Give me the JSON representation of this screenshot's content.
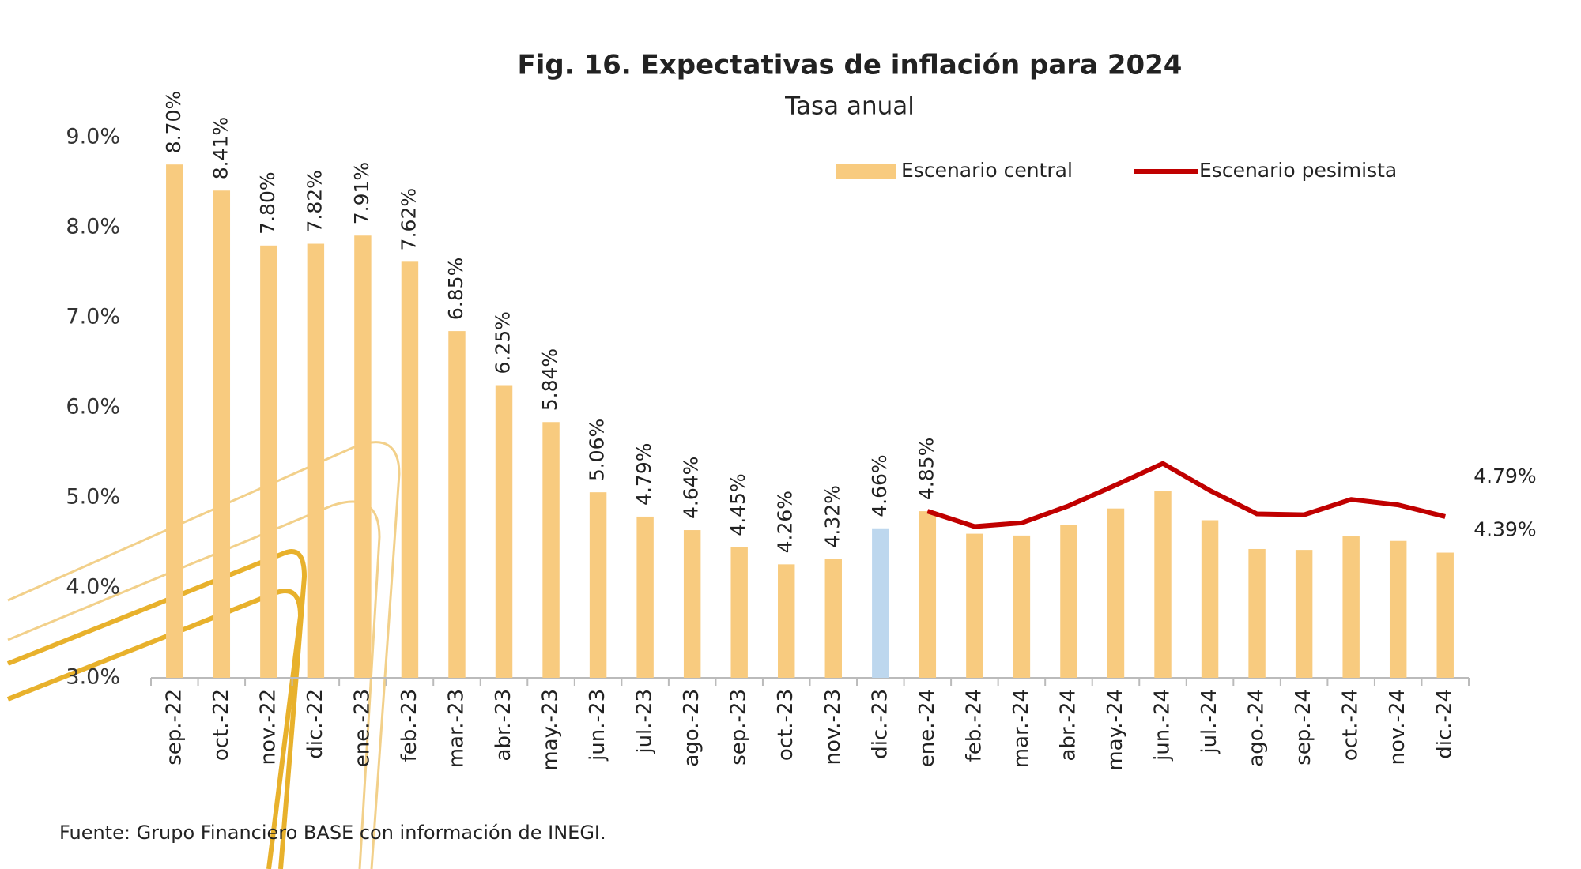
{
  "chart_data": {
    "type": "bar",
    "title": "Fig. 16. Expectativas de inflación para 2024",
    "subtitle": "Tasa anual",
    "source": "Fuente: Grupo Financiero BASE con información de INEGI.",
    "categories": [
      "sep.-22",
      "oct.-22",
      "nov.-22",
      "dic.-22",
      "ene.-23",
      "feb.-23",
      "mar.-23",
      "abr.-23",
      "may.-23",
      "jun.-23",
      "jul.-23",
      "ago.-23",
      "sep.-23",
      "oct.-23",
      "nov.-23",
      "dic.-23",
      "ene.-24",
      "feb.-24",
      "mar.-24",
      "abr.-24",
      "may.-24",
      "jun.-24",
      "jul.-24",
      "ago.-24",
      "sep.-24",
      "oct.-24",
      "nov.-24",
      "dic.-24"
    ],
    "series": [
      {
        "name": "Escenario central",
        "type": "bar",
        "color": "#f8cb7f",
        "values": [
          8.7,
          8.41,
          7.8,
          7.82,
          7.91,
          7.62,
          6.85,
          6.25,
          5.84,
          5.06,
          4.79,
          4.64,
          4.45,
          4.26,
          4.32,
          4.66,
          4.85,
          4.6,
          4.58,
          4.7,
          4.88,
          5.07,
          4.75,
          4.43,
          4.42,
          4.57,
          4.52,
          4.39
        ],
        "value_labels": [
          "8.70%",
          "8.41%",
          "7.80%",
          "7.82%",
          "7.91%",
          "7.62%",
          "6.85%",
          "6.25%",
          "5.84%",
          "5.06%",
          "4.79%",
          "4.64%",
          "4.45%",
          "4.26%",
          "4.32%",
          "4.66%",
          "4.85%",
          null,
          null,
          null,
          null,
          null,
          null,
          null,
          null,
          null,
          null,
          "4.39%"
        ],
        "bar_colors": [
          "#f8cb7f",
          "#f8cb7f",
          "#f8cb7f",
          "#f8cb7f",
          "#f8cb7f",
          "#f8cb7f",
          "#f8cb7f",
          "#f8cb7f",
          "#f8cb7f",
          "#f8cb7f",
          "#f8cb7f",
          "#f8cb7f",
          "#f8cb7f",
          "#f8cb7f",
          "#f8cb7f",
          "#bdd7ee",
          "#f8cb7f",
          "#f8cb7f",
          "#f8cb7f",
          "#f8cb7f",
          "#f8cb7f",
          "#f8cb7f",
          "#f8cb7f",
          "#f8cb7f",
          "#f8cb7f",
          "#f8cb7f",
          "#f8cb7f",
          "#f8cb7f"
        ]
      },
      {
        "name": "Escenario pesimista",
        "type": "line",
        "color": "#c00000",
        "values": [
          null,
          null,
          null,
          null,
          null,
          null,
          null,
          null,
          null,
          null,
          null,
          null,
          null,
          null,
          null,
          null,
          4.85,
          4.68,
          4.72,
          4.91,
          5.14,
          5.38,
          5.08,
          4.82,
          4.81,
          4.98,
          4.92,
          4.79
        ],
        "value_labels": [
          null,
          null,
          null,
          null,
          null,
          null,
          null,
          null,
          null,
          null,
          null,
          null,
          null,
          null,
          null,
          null,
          null,
          null,
          null,
          null,
          null,
          null,
          null,
          null,
          null,
          null,
          null,
          "4.79%"
        ]
      }
    ],
    "ylim": [
      3,
      9
    ],
    "yticks": [
      {
        "value": 3,
        "label": "3.0%"
      },
      {
        "value": 4,
        "label": "4.0%"
      },
      {
        "value": 5,
        "label": "5.0%"
      },
      {
        "value": 6,
        "label": "6.0%"
      },
      {
        "value": 7,
        "label": "7.0%"
      },
      {
        "value": 8,
        "label": "8.0%"
      },
      {
        "value": 9,
        "label": "9.0%"
      }
    ],
    "grid": false
  }
}
